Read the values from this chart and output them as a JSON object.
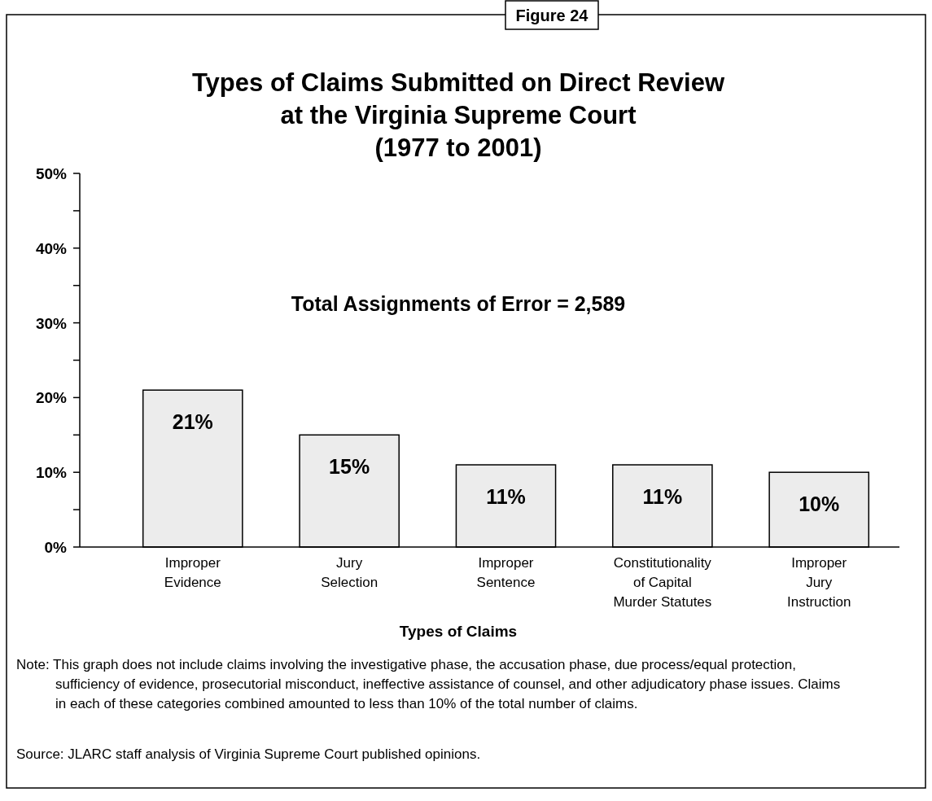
{
  "chart_data": {
    "type": "bar",
    "title": "Types of Claims Submitted on Direct Review\nat the Virginia Supreme Court\n(1977 to 2001)",
    "xlabel": "Types of Claims",
    "categories": [
      "Improper\nEvidence",
      "Jury\nSelection",
      "Improper\nSentence",
      "Constitutionality\nof Capital\nMurder Statutes",
      "Improper\nJury\nInstruction"
    ],
    "values": [
      21,
      15,
      11,
      11,
      10
    ],
    "color": "#ececec",
    "value_labels": [
      "21%",
      "15%",
      "11%",
      "11%",
      "10%"
    ],
    "ylim": [
      0,
      50
    ],
    "yticks": [
      {
        "value": 0,
        "label": "0%"
      },
      {
        "value": 5,
        "label": null
      },
      {
        "value": 10,
        "label": "10%"
      },
      {
        "value": 15,
        "label": null
      },
      {
        "value": 20,
        "label": "20%"
      },
      {
        "value": 25,
        "label": null
      },
      {
        "value": 30,
        "label": "30%"
      },
      {
        "value": 35,
        "label": null
      },
      {
        "value": 40,
        "label": "40%"
      },
      {
        "value": 45,
        "label": null
      },
      {
        "value": 50,
        "label": "50%"
      }
    ],
    "grid": false,
    "annotations": [
      "Figure 24",
      "Total Assignments of Error = 2,589",
      "Note:  This graph does not include claims involving the investigative phase, the accusation phase, due process/equal protection, sufficiency of evidence, prosecutorial misconduct, ineffective assistance of counsel, and other adjudicatory phase issues.  Claims in each of these categories combined amounted to less than 10% of the total number of claims.",
      "Source:  JLARC staff analysis of Virginia Supreme Court published opinions."
    ]
  }
}
